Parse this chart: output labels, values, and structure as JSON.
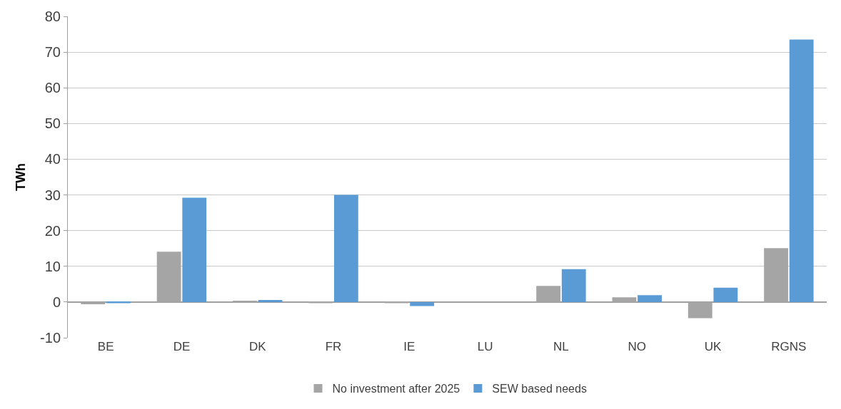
{
  "chart_data": {
    "type": "bar",
    "ylabel": "TWh",
    "categories": [
      "BE",
      "DE",
      "DK",
      "FR",
      "IE",
      "LU",
      "NL",
      "NO",
      "UK",
      "RGNS"
    ],
    "series": [
      {
        "name": "No investment after 2025",
        "color": "#a5a5a5",
        "values": [
          -0.6,
          14.1,
          0.3,
          -0.3,
          -0.3,
          0,
          4.5,
          1.3,
          -4.5,
          15.1
        ]
      },
      {
        "name": "SEW based needs",
        "color": "#5b9bd5",
        "values": [
          -0.3,
          29.2,
          0.6,
          30,
          -1.1,
          0,
          9.2,
          1.9,
          4,
          73.5
        ]
      }
    ],
    "ylim": [
      -10,
      80
    ],
    "yticks": [
      -10,
      0,
      10,
      20,
      30,
      40,
      50,
      60,
      70,
      80
    ],
    "grid": "y",
    "legend": "bottom"
  }
}
